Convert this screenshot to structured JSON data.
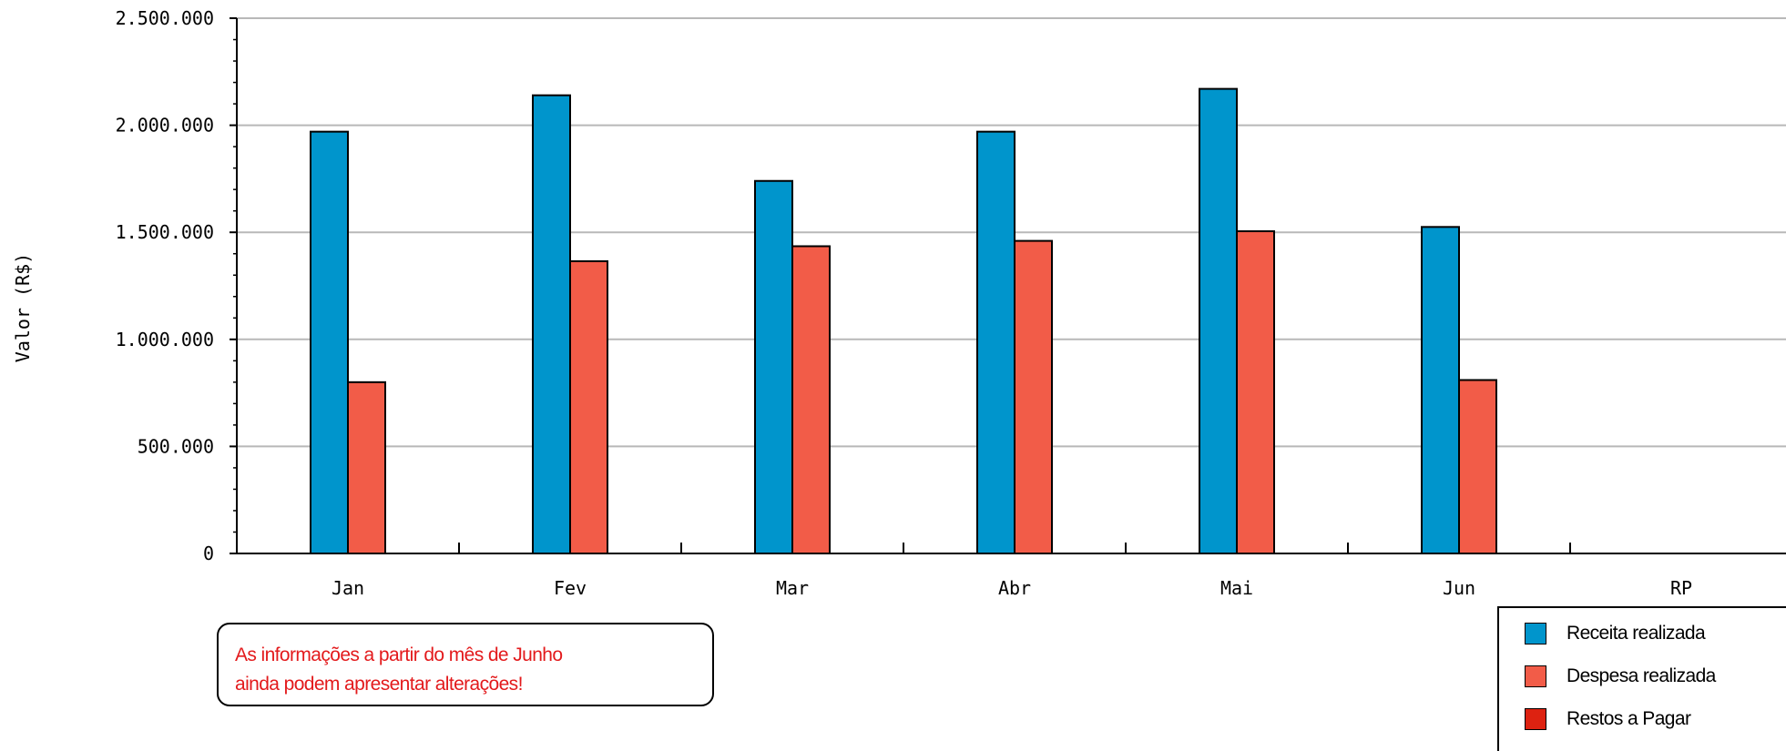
{
  "colors": {
    "receita": "#0095cc",
    "despesa": "#f25c48",
    "restos": "#dd2211",
    "grid": "#b8b8b8",
    "note_text": "#e31a1c"
  },
  "chart_data": {
    "type": "bar",
    "ylabel": "Valor (R$)",
    "xlabel": "",
    "ylim": [
      0,
      2500000
    ],
    "y_ticks": [
      {
        "value": 0,
        "label": "0"
      },
      {
        "value": 500000,
        "label": "500.000"
      },
      {
        "value": 1000000,
        "label": "1.000.000"
      },
      {
        "value": 1500000,
        "label": "1.500.000"
      },
      {
        "value": 2000000,
        "label": "2.000.000"
      },
      {
        "value": 2500000,
        "label": "2.500.000"
      }
    ],
    "grid": true,
    "categories": [
      "Jan",
      "Fev",
      "Mar",
      "Abr",
      "Mai",
      "Jun",
      "RP"
    ],
    "series": [
      {
        "name": "Receita realizada",
        "color_key": "receita",
        "values": [
          1970000,
          2140000,
          1740000,
          1970000,
          2170000,
          1525000,
          null
        ]
      },
      {
        "name": "Despesa realizada",
        "color_key": "despesa",
        "values": [
          800000,
          1365000,
          1435000,
          1460000,
          1505000,
          810000,
          null
        ]
      },
      {
        "name": "Restos a Pagar",
        "color_key": "restos",
        "values": [
          null,
          null,
          null,
          null,
          null,
          null,
          0
        ]
      }
    ],
    "legend_position": "bottom-right"
  },
  "note": {
    "line1": "As informações a partir do mês de Junho",
    "line2": "ainda podem apresentar alterações!"
  }
}
